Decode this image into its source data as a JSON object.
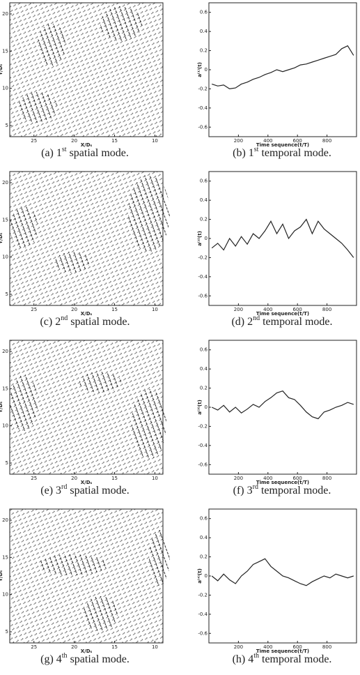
{
  "chart_data": [
    {
      "type": "quiver",
      "caption": [
        "(a) 1",
        "st",
        " spatial mode."
      ],
      "xlabel": "X/Dₛ",
      "ylabel": "Y/Dₛ",
      "xlim": [
        28,
        9
      ],
      "ylim": [
        3.5,
        21.5
      ],
      "xticks": [
        25,
        20,
        15,
        10
      ],
      "yticks": [
        5,
        10,
        15,
        20
      ]
    },
    {
      "type": "line",
      "caption": [
        "(b) 1",
        "st",
        " temporal mode."
      ],
      "xlabel": "Time sequence(t/T)",
      "ylabel": "a⁽¹⁾(t)",
      "xlim": [
        0,
        1000
      ],
      "ylim": [
        -0.7,
        0.7
      ],
      "xticks": [
        200,
        400,
        600,
        800
      ],
      "yticks": [
        0.6,
        0.4,
        0.2,
        0,
        -0.2,
        -0.4,
        -0.6
      ],
      "x": [
        20,
        60,
        100,
        140,
        180,
        220,
        260,
        300,
        340,
        380,
        420,
        460,
        500,
        540,
        580,
        620,
        660,
        700,
        740,
        780,
        820,
        860,
        900,
        940,
        980
      ],
      "series": [
        {
          "color": "#222222",
          "values": [
            -0.15,
            -0.17,
            -0.16,
            -0.2,
            -0.19,
            -0.15,
            -0.13,
            -0.1,
            -0.08,
            -0.05,
            -0.03,
            0,
            -0.02,
            0,
            0.02,
            0.05,
            0.06,
            0.08,
            0.1,
            0.12,
            0.14,
            0.16,
            0.22,
            0.25,
            0.15
          ]
        }
      ]
    },
    {
      "type": "quiver",
      "caption": [
        "(c) 2",
        "nd",
        " spatial mode."
      ],
      "xlabel": "X/Dₛ",
      "ylabel": "Y/Dₛ",
      "xlim": [
        28,
        9
      ],
      "ylim": [
        3.5,
        21.5
      ],
      "xticks": [
        25,
        20,
        15,
        10
      ],
      "yticks": [
        5,
        10,
        15,
        20
      ]
    },
    {
      "type": "line",
      "caption": [
        "(d) 2",
        "nd",
        " temporal mode."
      ],
      "xlabel": "Time sequence(t/T)",
      "ylabel": "a⁽²⁾(t)",
      "xlim": [
        0,
        1000
      ],
      "ylim": [
        -0.7,
        0.7
      ],
      "xticks": [
        200,
        400,
        600,
        800
      ],
      "yticks": [
        0.6,
        0.4,
        0.2,
        0,
        -0.2,
        -0.4,
        -0.6
      ],
      "x": [
        20,
        60,
        100,
        140,
        180,
        220,
        260,
        300,
        340,
        380,
        420,
        460,
        500,
        540,
        580,
        620,
        660,
        700,
        740,
        780,
        820,
        860,
        900,
        940,
        980
      ],
      "series": [
        {
          "color": "#222222",
          "values": [
            -0.1,
            -0.05,
            -0.12,
            0,
            -0.08,
            0.02,
            -0.06,
            0.05,
            0,
            0.08,
            0.18,
            0.05,
            0.15,
            0,
            0.08,
            0.12,
            0.2,
            0.05,
            0.18,
            0.1,
            0.05,
            0,
            -0.05,
            -0.12,
            -0.2
          ]
        }
      ]
    },
    {
      "type": "quiver",
      "caption": [
        "(e) 3",
        "rd",
        " spatial mode."
      ],
      "xlabel": "X/Dₛ",
      "ylabel": "Y/Dₛ",
      "xlim": [
        28,
        9
      ],
      "ylim": [
        3.5,
        21.5
      ],
      "xticks": [
        25,
        20,
        15,
        10
      ],
      "yticks": [
        5,
        10,
        15,
        20
      ]
    },
    {
      "type": "line",
      "caption": [
        "(f) 3",
        "rd",
        " temporal mode."
      ],
      "xlabel": "Time sequence(t/T)",
      "ylabel": "a⁽³⁾(t)",
      "xlim": [
        0,
        1000
      ],
      "ylim": [
        -0.7,
        0.7
      ],
      "xticks": [
        200,
        400,
        600,
        800
      ],
      "yticks": [
        0.6,
        0.4,
        0.2,
        0,
        -0.2,
        -0.4,
        -0.6
      ],
      "x": [
        20,
        60,
        100,
        140,
        180,
        220,
        260,
        300,
        340,
        380,
        420,
        460,
        500,
        540,
        580,
        620,
        660,
        700,
        740,
        780,
        820,
        860,
        900,
        940,
        980
      ],
      "series": [
        {
          "color": "#222222",
          "values": [
            0,
            -0.03,
            0.02,
            -0.05,
            0,
            -0.06,
            -0.02,
            0.03,
            0,
            0.06,
            0.1,
            0.15,
            0.17,
            0.1,
            0.08,
            0.02,
            -0.05,
            -0.1,
            -0.12,
            -0.05,
            -0.03,
            0,
            0.02,
            0.05,
            0.03
          ]
        }
      ]
    },
    {
      "type": "quiver",
      "caption": [
        "(g) 4",
        "th",
        " spatial mode."
      ],
      "xlabel": "X/Dₛ",
      "ylabel": "Y/Dₛ",
      "xlim": [
        28,
        9
      ],
      "ylim": [
        3.5,
        21.5
      ],
      "xticks": [
        25,
        20,
        15,
        10
      ],
      "yticks": [
        5,
        10,
        15,
        20
      ]
    },
    {
      "type": "line",
      "caption": [
        "(h) 4",
        "th",
        " temporal mode."
      ],
      "xlabel": "Time sequence(t/T)",
      "ylabel": "a⁽⁴⁾(t)",
      "xlim": [
        0,
        1000
      ],
      "ylim": [
        -0.7,
        0.7
      ],
      "xticks": [
        200,
        400,
        600,
        800
      ],
      "yticks": [
        0.6,
        0.4,
        0.2,
        0,
        -0.2,
        -0.4,
        -0.6
      ],
      "x": [
        20,
        60,
        100,
        140,
        180,
        220,
        260,
        300,
        340,
        380,
        420,
        460,
        500,
        540,
        580,
        620,
        660,
        700,
        740,
        780,
        820,
        860,
        900,
        940,
        980
      ],
      "series": [
        {
          "color": "#222222",
          "values": [
            0,
            -0.05,
            0.02,
            -0.04,
            -0.08,
            0,
            0.05,
            0.12,
            0.15,
            0.18,
            0.1,
            0.05,
            0,
            -0.02,
            -0.05,
            -0.08,
            -0.1,
            -0.06,
            -0.03,
            0,
            -0.02,
            0.02,
            0,
            -0.02,
            0
          ]
        }
      ]
    }
  ]
}
